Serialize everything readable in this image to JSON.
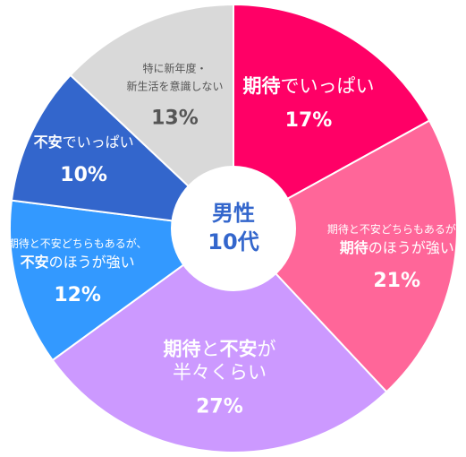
{
  "chart_data": {
    "type": "pie",
    "center_label": [
      "男性",
      "10代"
    ],
    "slices": [
      {
        "name": "期待でいっぱい",
        "label_lines": [
          [
            {
              "t": "期待",
              "b": true,
              "s": "l"
            },
            {
              "t": "でいっぱい",
              "b": false,
              "s": "l"
            }
          ]
        ],
        "value": 17,
        "value_label": "17%",
        "color": "#ff0066"
      },
      {
        "name": "期待と不安どちらもあるが、期待のほうが強い",
        "label_lines": [
          [
            {
              "t": "期待と不安どちらもあるが、",
              "b": false,
              "s": "s"
            }
          ],
          [
            {
              "t": "期待",
              "b": true,
              "s": "m"
            },
            {
              "t": "のほうが強い",
              "b": false,
              "s": "m"
            }
          ]
        ],
        "value": 21,
        "value_label": "21%",
        "color": "#ff6699"
      },
      {
        "name": "期待と不安が半々くらい",
        "label_lines": [
          [
            {
              "t": "期待",
              "b": true,
              "s": "l"
            },
            {
              "t": "と",
              "b": false,
              "s": "l"
            },
            {
              "t": "不安",
              "b": true,
              "s": "l"
            },
            {
              "t": "が",
              "b": false,
              "s": "l"
            }
          ],
          [
            {
              "t": "半々くらい",
              "b": false,
              "s": "l"
            }
          ]
        ],
        "value": 27,
        "value_label": "27%",
        "color": "#cc99ff"
      },
      {
        "name": "期待と不安どちらもあるが、不安のほうが強い",
        "label_lines": [
          [
            {
              "t": "期待と不安どちらもあるが、",
              "b": false,
              "s": "s"
            }
          ],
          [
            {
              "t": "不安",
              "b": true,
              "s": "m"
            },
            {
              "t": "のほうが強い",
              "b": false,
              "s": "m"
            }
          ]
        ],
        "value": 12,
        "value_label": "12%",
        "color": "#3399ff"
      },
      {
        "name": "不安でいっぱい",
        "label_lines": [
          [
            {
              "t": "不安",
              "b": true,
              "s": "m"
            },
            {
              "t": "でいっぱい",
              "b": false,
              "s": "m"
            }
          ]
        ],
        "value": 10,
        "value_label": "10%",
        "color": "#3366cc"
      },
      {
        "name": "特に新年度・新生活を意識しない",
        "label_lines": [
          [
            {
              "t": "特に新年度・",
              "b": false,
              "s": "s"
            }
          ],
          [
            {
              "t": "新生活を意識しない",
              "b": false,
              "s": "s"
            }
          ]
        ],
        "value": 13,
        "value_label": "13%",
        "color": "#d9d9d9"
      }
    ],
    "text_color": "#ffffff",
    "gray_text_color": "#555555",
    "center_text_color": "#3366cc"
  }
}
